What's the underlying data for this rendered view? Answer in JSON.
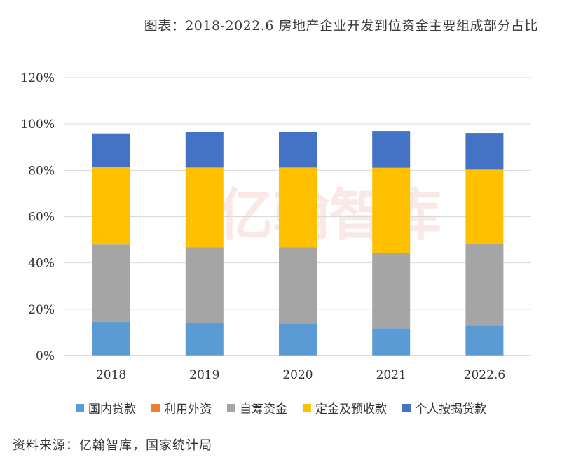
{
  "title": "图表：2018-2022.6 房地产企业开发到位资金主要组成部分占比",
  "source": "资料来源：亿翰智库，国家统计局",
  "watermark": "亿翰智库",
  "colors": {
    "gridline": "#d9d9d9",
    "axis": "#bfbfbf",
    "watermark": "#f4d5d0"
  },
  "chart_data": {
    "type": "bar",
    "stacked": true,
    "title": "图表：2018-2022.6 房地产企业开发到位资金主要组成部分占比",
    "categories": [
      "2018",
      "2019",
      "2020",
      "2021",
      "2022.6"
    ],
    "ylim": [
      0,
      120
    ],
    "yticks": [
      "0%",
      "20%",
      "40%",
      "60%",
      "80%",
      "100%",
      "120%"
    ],
    "grid": true,
    "legend_position": "bottom",
    "series": [
      {
        "name": "国内贷款",
        "color": "#5b9bd5",
        "values": [
          14.5,
          14.1,
          13.8,
          11.7,
          12.9
        ]
      },
      {
        "name": "利用外资",
        "color": "#ed7d31",
        "values": [
          0.0,
          0.0,
          0.0,
          0.0,
          0.0
        ]
      },
      {
        "name": "自筹资金",
        "color": "#a5a5a5",
        "values": [
          33.5,
          32.6,
          32.9,
          32.5,
          35.4
        ]
      },
      {
        "name": "定金及预收款",
        "color": "#ffc000",
        "values": [
          33.5,
          34.5,
          34.5,
          36.9,
          32.0
        ]
      },
      {
        "name": "个人按揭贷款",
        "color": "#4472c4",
        "values": [
          14.4,
          15.3,
          15.5,
          15.9,
          15.8
        ]
      }
    ]
  }
}
